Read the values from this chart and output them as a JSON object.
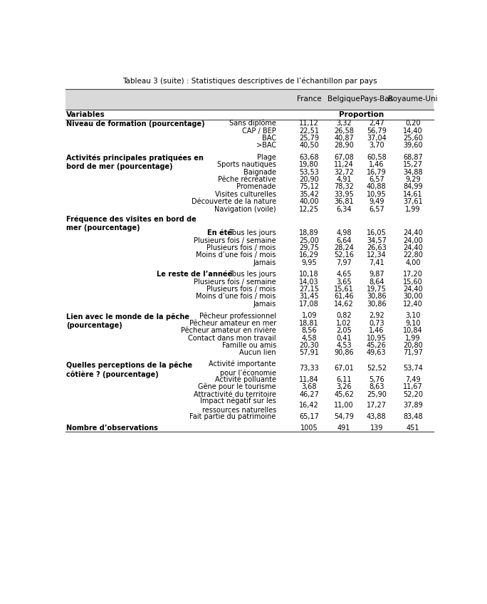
{
  "title": "Tableau 3 (suite) : Statistiques descriptives de l’échantillon par pays",
  "columns": [
    "France",
    "Belgique",
    "Pays-Bas",
    "Royaume-Uni"
  ],
  "rows": [
    {
      "section": "Niveau de formation (pourcentage)",
      "bold_section": true,
      "sub": "",
      "label": "Sans diplôme",
      "values": [
        "11,12",
        "3,32",
        "2,47",
        "0,20"
      ],
      "spacer": false,
      "double_label": false
    },
    {
      "section": "",
      "bold_section": false,
      "sub": "",
      "label": "CAP / BEP",
      "values": [
        "22,51",
        "26,58",
        "56,79",
        "14,40"
      ],
      "spacer": false,
      "double_label": false
    },
    {
      "section": "",
      "bold_section": false,
      "sub": "",
      "label": "BAC",
      "values": [
        "25,79",
        "40,87",
        "37,04",
        "25,60"
      ],
      "spacer": false,
      "double_label": false
    },
    {
      "section": "",
      "bold_section": false,
      "sub": "",
      "label": ">BAC",
      "values": [
        "40,50",
        "28,90",
        "3,70",
        "39,60"
      ],
      "spacer": false,
      "double_label": false
    },
    {
      "section": "",
      "bold_section": false,
      "sub": "",
      "label": "",
      "values": null,
      "spacer": true,
      "double_label": false
    },
    {
      "section": "Activités principales pratiquées en\nbord de mer (pourcentage)",
      "bold_section": true,
      "sub": "",
      "label": "Plage",
      "values": [
        "63,68",
        "67,08",
        "60,58",
        "68,87"
      ],
      "spacer": false,
      "double_label": false
    },
    {
      "section": "",
      "bold_section": false,
      "sub": "",
      "label": "Sports nautiques",
      "values": [
        "19,80",
        "11,24",
        "1,46",
        "15,27"
      ],
      "spacer": false,
      "double_label": false
    },
    {
      "section": "",
      "bold_section": false,
      "sub": "",
      "label": "Baignade",
      "values": [
        "53,53",
        "32,72",
        "16,79",
        "34,88"
      ],
      "spacer": false,
      "double_label": false
    },
    {
      "section": "",
      "bold_section": false,
      "sub": "",
      "label": "Pêche récréative",
      "values": [
        "20,90",
        "4,91",
        "6,57",
        "9,29"
      ],
      "spacer": false,
      "double_label": false
    },
    {
      "section": "",
      "bold_section": false,
      "sub": "",
      "label": "Promenade",
      "values": [
        "75,12",
        "78,32",
        "40,88",
        "84,99"
      ],
      "spacer": false,
      "double_label": false
    },
    {
      "section": "",
      "bold_section": false,
      "sub": "",
      "label": "Visites culturelles",
      "values": [
        "35,42",
        "33,95",
        "10,95",
        "14,61"
      ],
      "spacer": false,
      "double_label": false
    },
    {
      "section": "",
      "bold_section": false,
      "sub": "",
      "label": "Découverte de la nature",
      "values": [
        "40,00",
        "36,81",
        "9,49",
        "37,61"
      ],
      "spacer": false,
      "double_label": false
    },
    {
      "section": "",
      "bold_section": false,
      "sub": "",
      "label": "Navigation (voile)",
      "values": [
        "12,25",
        "6,34",
        "6,57",
        "1,99"
      ],
      "spacer": false,
      "double_label": false
    },
    {
      "section": "",
      "bold_section": false,
      "sub": "",
      "label": "",
      "values": null,
      "spacer": true,
      "double_label": false
    },
    {
      "section": "Fréquence des visites en bord de\nmer (pourcentage)",
      "bold_section": true,
      "sub": "",
      "label": "",
      "values": null,
      "spacer": false,
      "double_label": false
    },
    {
      "section": "",
      "bold_section": false,
      "sub": "En été",
      "label": "Tous les jours",
      "values": [
        "18,89",
        "4,98",
        "16,05",
        "24,40"
      ],
      "spacer": false,
      "double_label": false
    },
    {
      "section": "",
      "bold_section": false,
      "sub": "",
      "label": "Plusieurs fois / semaine",
      "values": [
        "25,00",
        "6,64",
        "34,57",
        "24,00"
      ],
      "spacer": false,
      "double_label": false
    },
    {
      "section": "",
      "bold_section": false,
      "sub": "",
      "label": "Plusieurs fois / mois",
      "values": [
        "29,75",
        "28,24",
        "26,63",
        "24,40"
      ],
      "spacer": false,
      "double_label": false
    },
    {
      "section": "",
      "bold_section": false,
      "sub": "",
      "label": "Moins d’une fois / mois",
      "values": [
        "16,29",
        "52,16",
        "12,34",
        "22,80"
      ],
      "spacer": false,
      "double_label": false
    },
    {
      "section": "",
      "bold_section": false,
      "sub": "",
      "label": "Jamais",
      "values": [
        "9,95",
        "7,97",
        "7,41",
        "4,00"
      ],
      "spacer": false,
      "double_label": false
    },
    {
      "section": "",
      "bold_section": false,
      "sub": "",
      "label": "",
      "values": null,
      "spacer": true,
      "double_label": false
    },
    {
      "section": "",
      "bold_section": false,
      "sub": "Le reste de l’année",
      "label": "Tous les jours",
      "values": [
        "10,18",
        "4,65",
        "9,87",
        "17,20"
      ],
      "spacer": false,
      "double_label": false
    },
    {
      "section": "",
      "bold_section": false,
      "sub": "",
      "label": "Plusieurs fois / semaine",
      "values": [
        "14,03",
        "3,65",
        "8,64",
        "15,60"
      ],
      "spacer": false,
      "double_label": false
    },
    {
      "section": "",
      "bold_section": false,
      "sub": "",
      "label": "Plusieurs fois / mois",
      "values": [
        "27,15",
        "15,61",
        "19,75",
        "24,40"
      ],
      "spacer": false,
      "double_label": false
    },
    {
      "section": "",
      "bold_section": false,
      "sub": "",
      "label": "Moins d’une fois / mois",
      "values": [
        "31,45",
        "61,46",
        "30,86",
        "30,00"
      ],
      "spacer": false,
      "double_label": false
    },
    {
      "section": "",
      "bold_section": false,
      "sub": "",
      "label": "Jamais",
      "values": [
        "17,08",
        "14,62",
        "30,86",
        "12,40"
      ],
      "spacer": false,
      "double_label": false
    },
    {
      "section": "",
      "bold_section": false,
      "sub": "",
      "label": "",
      "values": null,
      "spacer": true,
      "double_label": false
    },
    {
      "section": "Lien avec le monde de la pêche\n(pourcentage)",
      "bold_section": true,
      "sub": "",
      "label": "Pêcheur professionnel",
      "values": [
        "1,09",
        "0,82",
        "2,92",
        "3,10"
      ],
      "spacer": false,
      "double_label": false
    },
    {
      "section": "",
      "bold_section": false,
      "sub": "",
      "label": "Pêcheur amateur en mer",
      "values": [
        "18,81",
        "1,02",
        "0,73",
        "9,10"
      ],
      "spacer": false,
      "double_label": false
    },
    {
      "section": "",
      "bold_section": false,
      "sub": "",
      "label": "Pêcheur amateur en rivière",
      "values": [
        "8,56",
        "2,05",
        "1,46",
        "10,84"
      ],
      "spacer": false,
      "double_label": false
    },
    {
      "section": "",
      "bold_section": false,
      "sub": "",
      "label": "Contact dans mon travail",
      "values": [
        "4,58",
        "0,41",
        "10,95",
        "1,99"
      ],
      "spacer": false,
      "double_label": false
    },
    {
      "section": "",
      "bold_section": false,
      "sub": "",
      "label": "Famille ou amis",
      "values": [
        "20,30",
        "4,53",
        "45,26",
        "20,80"
      ],
      "spacer": false,
      "double_label": false
    },
    {
      "section": "",
      "bold_section": false,
      "sub": "",
      "label": "Aucun lien",
      "values": [
        "57,91",
        "90,86",
        "49,63",
        "71,97"
      ],
      "spacer": false,
      "double_label": false
    },
    {
      "section": "",
      "bold_section": false,
      "sub": "",
      "label": "",
      "values": null,
      "spacer": true,
      "double_label": false
    },
    {
      "section": "Quelles perceptions de la pêche\ncôtière ? (pourcentage)",
      "bold_section": true,
      "sub": "",
      "label": "Activité importante\npour l’économie",
      "values": [
        "73,33",
        "67,01",
        "52,52",
        "53,74"
      ],
      "spacer": false,
      "double_label": true
    },
    {
      "section": "",
      "bold_section": false,
      "sub": "",
      "label": "Activité polluante",
      "values": [
        "11,84",
        "6,11",
        "5,76",
        "7,49"
      ],
      "spacer": false,
      "double_label": false
    },
    {
      "section": "",
      "bold_section": false,
      "sub": "",
      "label": "Gêne pour le tourisme",
      "values": [
        "3,68",
        "3,26",
        "8,63",
        "11,67"
      ],
      "spacer": false,
      "double_label": false
    },
    {
      "section": "",
      "bold_section": false,
      "sub": "",
      "label": "Attractivité du territoire",
      "values": [
        "46,27",
        "45,62",
        "25,90",
        "52,20"
      ],
      "spacer": false,
      "double_label": false
    },
    {
      "section": "",
      "bold_section": false,
      "sub": "",
      "label": "Impact négatif sur les\nressources naturelles",
      "values": [
        "16,42",
        "11,00",
        "17,27",
        "37,89"
      ],
      "spacer": false,
      "double_label": true
    },
    {
      "section": "",
      "bold_section": false,
      "sub": "",
      "label": "Fait partie du patrimoine",
      "values": [
        "65,17",
        "54,79",
        "43,88",
        "83,48"
      ],
      "spacer": false,
      "double_label": false
    },
    {
      "section": "",
      "bold_section": false,
      "sub": "",
      "label": "",
      "values": null,
      "spacer": true,
      "double_label": false
    },
    {
      "section": "Nombre d’observations",
      "bold_section": true,
      "sub": "",
      "label": "",
      "values": [
        "1005",
        "491",
        "139",
        "451"
      ],
      "spacer": false,
      "double_label": false
    }
  ],
  "bg_header": "#d9d9d9",
  "bg_white": "#ffffff",
  "text_color": "#000000",
  "border_color": "#444444",
  "font_size": 7.0,
  "title_font_size": 7.5
}
